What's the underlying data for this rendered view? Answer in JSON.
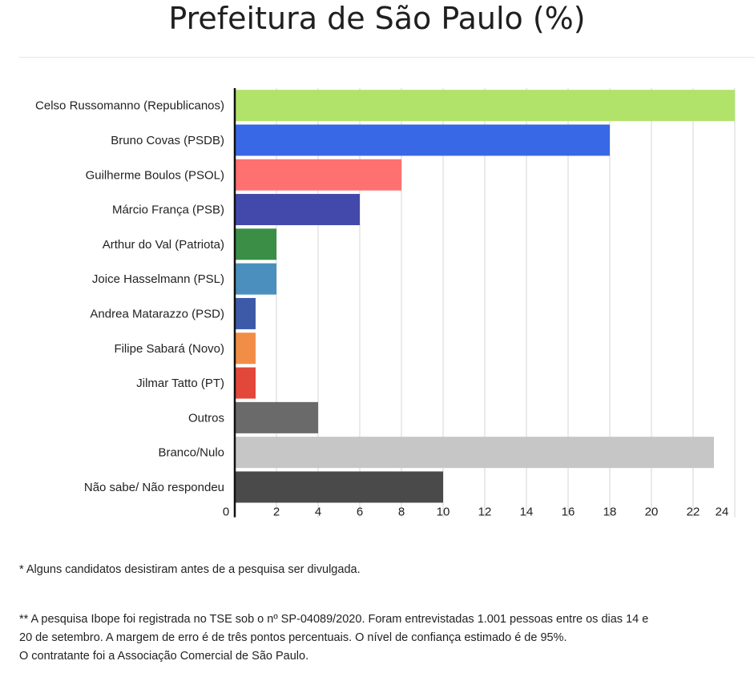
{
  "chart_data": {
    "type": "bar",
    "orientation": "horizontal",
    "title": "Prefeitura de São Paulo (%)",
    "categories": [
      "Celso Russomanno (Republicanos)",
      "Bruno Covas (PSDB)",
      "Guilherme Boulos (PSOL)",
      "Márcio França (PSB)",
      "Arthur do Val (Patriota)",
      "Joice Hasselmann (PSL)",
      "Andrea Matarazzo (PSD)",
      "Filipe Sabará (Novo)",
      "Jilmar Tatto (PT)",
      "Outros",
      "Branco/Nulo",
      "Não sabe/ Não respondeu"
    ],
    "values": [
      24,
      18,
      8,
      6,
      2,
      2,
      1,
      1,
      1,
      4,
      23,
      10
    ],
    "colors": [
      "#b1e26a",
      "#3868e5",
      "#ff7070",
      "#4348ab",
      "#3a8e45",
      "#4a8fbd",
      "#3c5aa8",
      "#f28d47",
      "#e2473a",
      "#6a6a6a",
      "#c6c6c6",
      "#4a4a4a"
    ],
    "xlim": [
      0,
      24
    ],
    "xticks": [
      "0",
      "2",
      "4",
      "6",
      "8",
      "10",
      "12",
      "14",
      "16",
      "18",
      "20",
      "22",
      "24"
    ],
    "grid": true
  },
  "notes": {
    "note1": "* Alguns candidatos desistiram antes de a pesquisa ser divulgada.",
    "note2_lines": [
      "** A pesquisa Ibope foi registrada no TSE sob o nº SP-04089/2020. Foram entrevistadas 1.001 pessoas entre os dias 14 e",
      "20 de setembro. A margem de erro é de três pontos percentuais. O nível de confiança estimado é de 95%.",
      "O contratante foi a Associação Comercial de São Paulo."
    ]
  }
}
